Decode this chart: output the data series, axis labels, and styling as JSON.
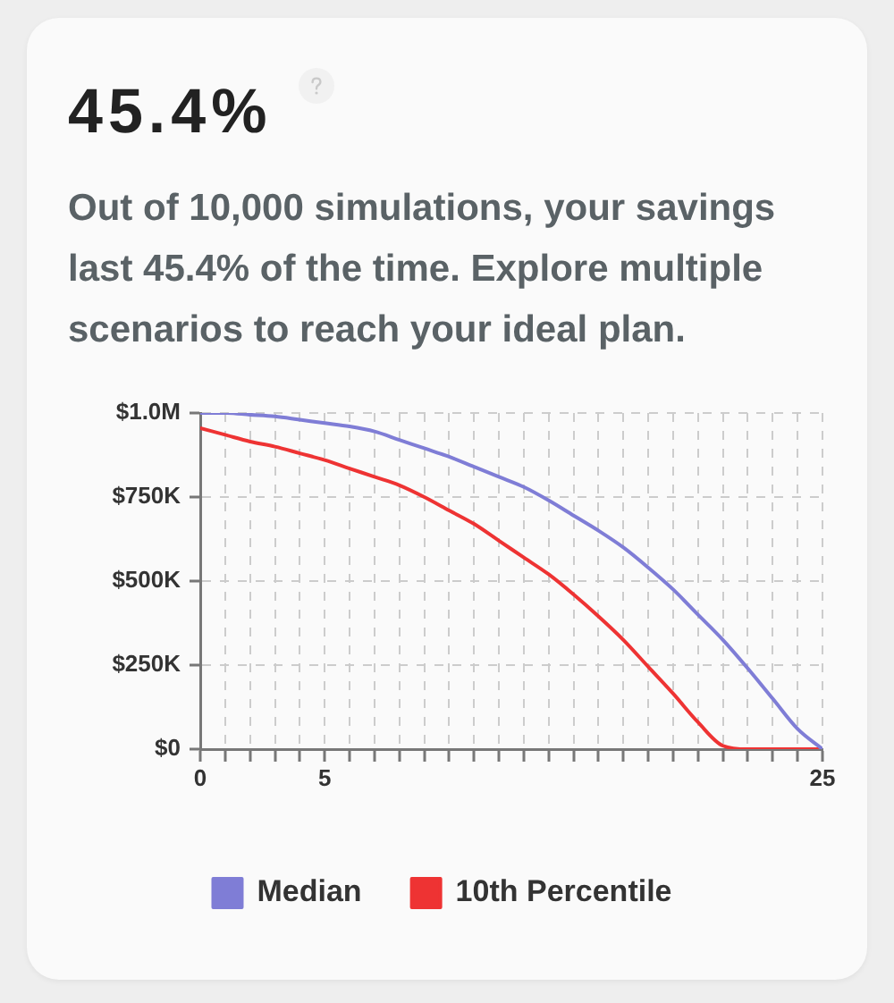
{
  "chart_data": {
    "type": "line",
    "title": "45.4%",
    "subtitle": "Out of 10,000 simulations, your savings last 45.4% of the time. Explore multiple scenarios to reach your ideal plan.",
    "x": [
      0,
      1,
      2,
      3,
      4,
      5,
      6,
      7,
      8,
      9,
      10,
      11,
      12,
      13,
      14,
      15,
      16,
      17,
      18,
      19,
      20,
      21,
      22,
      23,
      24,
      25
    ],
    "series": [
      {
        "name": "Median",
        "color": "#7f7dd6",
        "values": [
          1000000,
          1000000,
          995000,
          990000,
          980000,
          970000,
          960000,
          945000,
          920000,
          895000,
          870000,
          840000,
          810000,
          780000,
          740000,
          695000,
          650000,
          600000,
          540000,
          475000,
          400000,
          325000,
          240000,
          150000,
          60000,
          0
        ]
      },
      {
        "name": "10th Percentile",
        "color": "#ee3333",
        "values": [
          955000,
          935000,
          915000,
          900000,
          880000,
          860000,
          835000,
          810000,
          785000,
          750000,
          710000,
          670000,
          620000,
          570000,
          520000,
          460000,
          395000,
          325000,
          245000,
          165000,
          80000,
          10000,
          0,
          0,
          0,
          0
        ]
      }
    ],
    "xlim": [
      0,
      25
    ],
    "xticks": [
      0,
      {
        "value": 1,
        "label": null
      },
      {
        "value": 2,
        "label": null
      },
      {
        "value": 3,
        "label": null
      },
      {
        "value": 4,
        "label": null
      },
      5,
      {
        "value": 6,
        "label": null
      },
      {
        "value": 7,
        "label": null
      },
      {
        "value": 8,
        "label": null
      },
      {
        "value": 9,
        "label": null
      },
      {
        "value": 10,
        "label": null
      },
      {
        "value": 11,
        "label": null
      },
      {
        "value": 12,
        "label": null
      },
      {
        "value": 13,
        "label": null
      },
      {
        "value": 14,
        "label": null
      },
      {
        "value": 15,
        "label": null
      },
      {
        "value": 16,
        "label": null
      },
      {
        "value": 17,
        "label": null
      },
      {
        "value": 18,
        "label": null
      },
      {
        "value": 19,
        "label": null
      },
      {
        "value": 20,
        "label": null
      },
      {
        "value": 21,
        "label": null
      },
      {
        "value": 22,
        "label": null
      },
      {
        "value": 23,
        "label": null
      },
      {
        "value": 24,
        "label": null
      },
      25
    ],
    "ylim": [
      0,
      1000000
    ],
    "yticks": [
      {
        "value": 0,
        "label": "$0"
      },
      {
        "value": 250000,
        "label": "$250K"
      },
      {
        "value": 500000,
        "label": "$500K"
      },
      {
        "value": 750000,
        "label": "$750K"
      },
      {
        "value": 1000000,
        "label": "$1.0M"
      }
    ],
    "grid": true,
    "legend": "bottom",
    "marker": "none",
    "line_style": "solid"
  }
}
